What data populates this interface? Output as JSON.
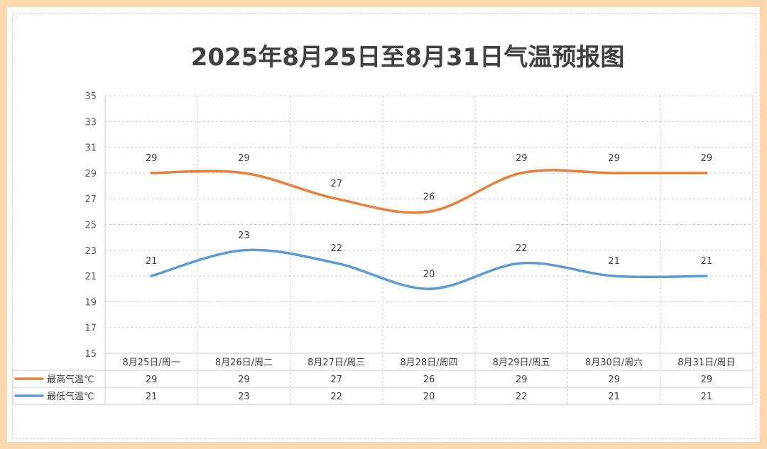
{
  "chart_data": {
    "type": "line",
    "title": "2025年8月25日至8月31日气温预报图",
    "categories": [
      "8月25日/周一",
      "8月26日/周二",
      "8月27日/周三",
      "8月28日/周四",
      "8月29日/周五",
      "8月30日/周六",
      "8月31日/周日"
    ],
    "series": [
      {
        "name": "最高气温℃",
        "color": "#e8803c",
        "values": [
          29,
          29,
          27,
          26,
          29,
          29,
          29
        ]
      },
      {
        "name": "最低气温℃",
        "color": "#5b9bd5",
        "values": [
          21,
          23,
          22,
          20,
          22,
          21,
          21
        ]
      }
    ],
    "ylim": [
      15,
      35
    ],
    "yticks": [
      15,
      17,
      19,
      21,
      23,
      25,
      27,
      29,
      31,
      33,
      35
    ],
    "grid": true,
    "data_table": true,
    "smooth": true
  }
}
